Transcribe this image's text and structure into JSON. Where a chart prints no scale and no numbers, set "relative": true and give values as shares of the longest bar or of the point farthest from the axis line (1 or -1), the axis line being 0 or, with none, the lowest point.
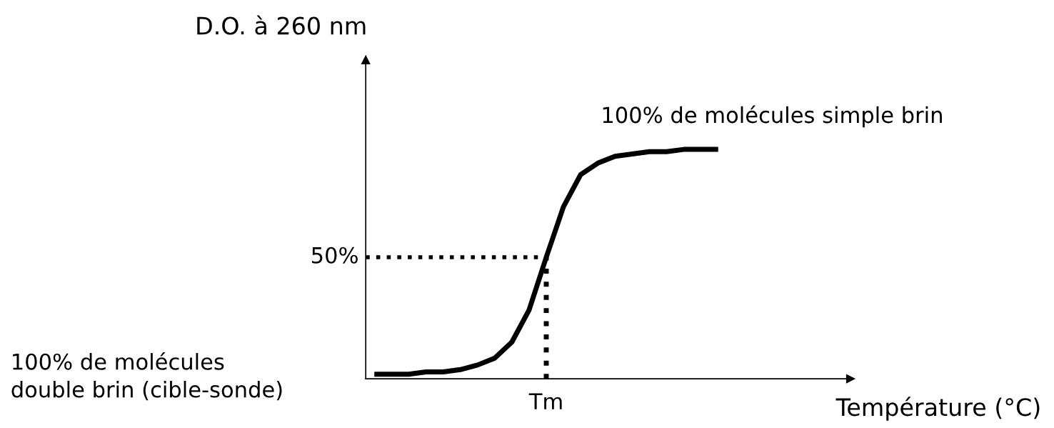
{
  "chart_data": {
    "type": "line",
    "relative": true,
    "ylabel": "D.O. à 260 nm",
    "xlabel": "Température (°C)",
    "categories": [
      null,
      null,
      null,
      null,
      null,
      null,
      null,
      null,
      null,
      null,
      null,
      null,
      null,
      null,
      null,
      null,
      null,
      null,
      null,
      null,
      null
    ],
    "series": [
      {
        "color": "#000000",
        "values": [
          0.02,
          0.02,
          0.02,
          0.03,
          0.03,
          0.04,
          0.06,
          0.09,
          0.16,
          0.3,
          0.53,
          0.75,
          0.89,
          0.94,
          0.97,
          0.98,
          0.99,
          0.99,
          1,
          1,
          1
        ]
      }
    ],
    "ref_lines": [
      {
        "axis": "y",
        "value": 0.53,
        "label": null,
        "color": "#000000",
        "line_style": "dotted"
      },
      {
        "axis": "x",
        "label": "Tm",
        "color": "#000000",
        "line_style": "dotted"
      }
    ],
    "annotations": [
      "100% de molécules simple brin",
      "100% de molécules\ndouble brin (cible-sonde)",
      "50%"
    ],
    "legend": false,
    "marker": "none",
    "line_style": "solid"
  }
}
